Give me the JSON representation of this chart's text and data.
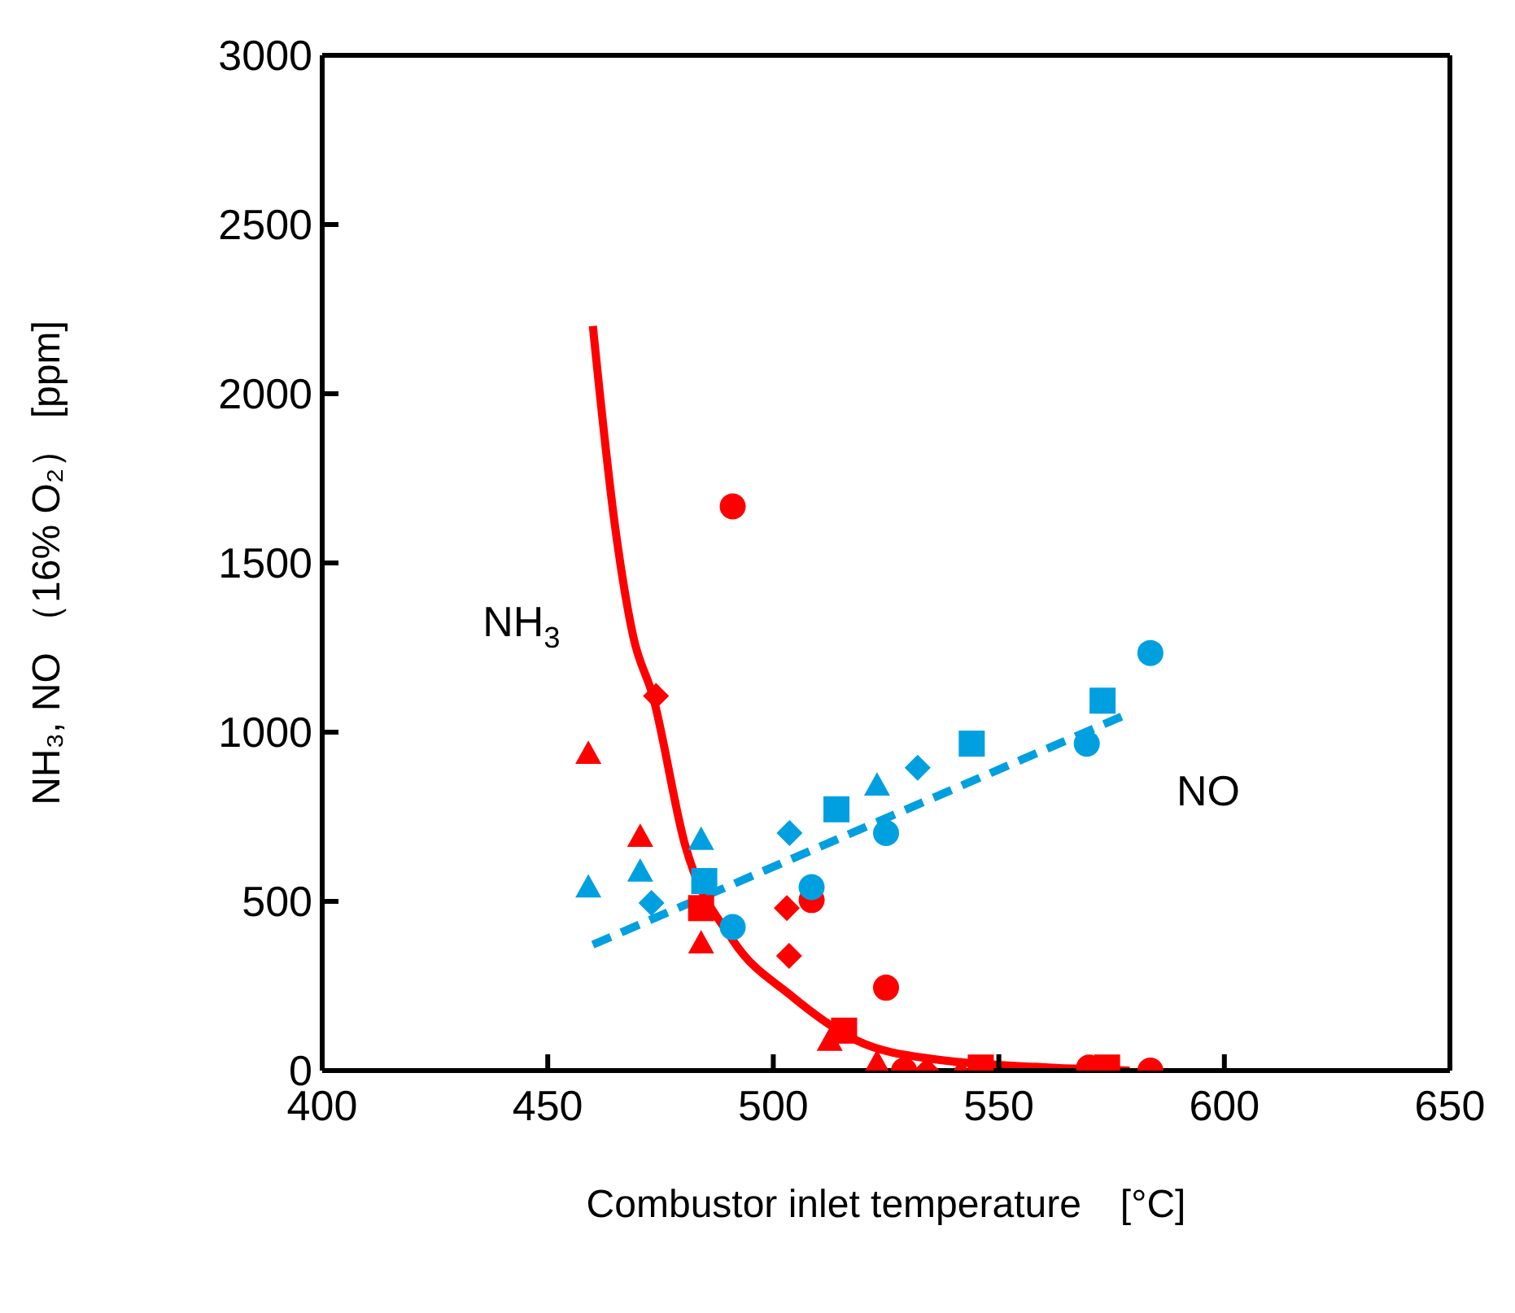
{
  "chart_data": {
    "type": "scatter",
    "xlabel": "Combustor inlet temperature　[°C]",
    "ylabel": "NH₃, NO （16% O₂） [ppm]",
    "xlim": [
      400,
      650
    ],
    "xticks": [
      400,
      450,
      500,
      550,
      600,
      650
    ],
    "ylim": [
      0,
      3000
    ],
    "yticks": [
      0,
      500,
      1000,
      1500,
      2000,
      2500,
      3000
    ],
    "grid": false,
    "legend": false,
    "annotations": [
      {
        "text": "NH$_{3}$",
        "x": 469,
        "y": 1280
      },
      "NO"
    ],
    "series": [
      {
        "type": "line",
        "color": "#ff0000",
        "line_style": "solid",
        "marker": "none",
        "x": [
          460,
          465,
          469,
          473.3,
          480.4,
          491,
          504,
          518.5,
          536,
          561,
          579
        ],
        "values": [
          2200,
          1600,
          1280,
          1107,
          669,
          386,
          221,
          89,
          33,
          9,
          0
        ]
      },
      {
        "type": "line",
        "color": "#00a0e0",
        "line_style": "dashed",
        "marker": "none",
        "x": [
          460,
          577.2
        ],
        "values": [
          372,
          1046
        ]
      },
      {
        "color": "#ff0000",
        "marker": "triangle",
        "x": [
          459,
          470.5,
          484,
          512.5,
          523,
          541.6
        ],
        "values": [
          937,
          692,
          377,
          89,
          24,
          0
        ]
      },
      {
        "color": "#ff0000",
        "marker": "square",
        "x": [
          484,
          515.7,
          546,
          574
        ],
        "values": [
          480,
          118,
          9,
          9
        ]
      },
      {
        "color": "#ff0000",
        "marker": "diamond",
        "x": [
          474,
          503,
          503.5,
          534
        ],
        "values": [
          1107,
          480,
          339,
          0
        ]
      },
      {
        "color": "#ff0000",
        "marker": "circle",
        "x": [
          491,
          508.5,
          525,
          529,
          570,
          583.6
        ],
        "values": [
          1667,
          504,
          245,
          0,
          9,
          0
        ]
      },
      {
        "color": "#00a0e0",
        "marker": "triangle",
        "x": [
          459,
          470.5,
          484,
          523
        ],
        "values": [
          542,
          589,
          683,
          843
        ]
      },
      {
        "color": "#00a0e0",
        "marker": "square",
        "x": [
          484.7,
          514,
          544,
          573
        ],
        "values": [
          560,
          772,
          966,
          1093
        ]
      },
      {
        "color": "#00a0e0",
        "marker": "diamond",
        "x": [
          473,
          503.6,
          532
        ],
        "values": [
          495,
          702,
          895
        ]
      },
      {
        "color": "#00a0e0",
        "marker": "circle",
        "x": [
          491,
          508.5,
          525,
          569.5,
          583.6
        ],
        "values": [
          424,
          542,
          702,
          966,
          1234
        ]
      }
    ]
  }
}
